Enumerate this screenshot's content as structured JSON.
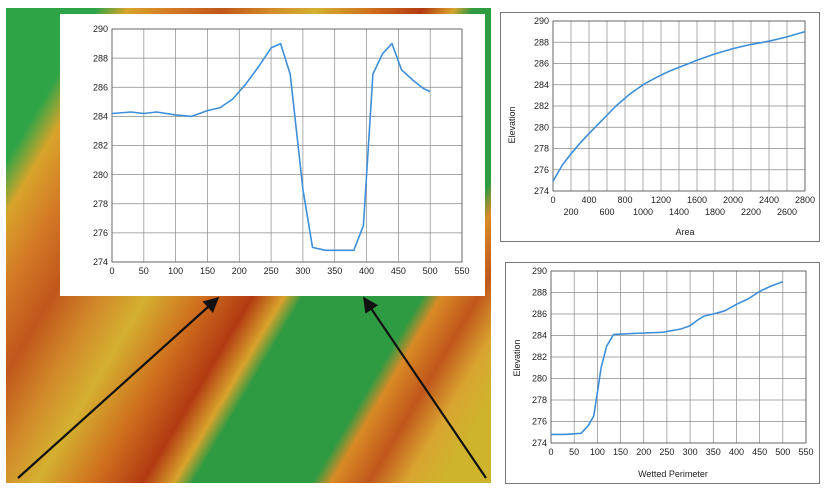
{
  "colors": {
    "line": "#3d8fd9",
    "grid": "#8a8a8a",
    "channel_green": "#2e9a42",
    "bank_green": "#2fa447",
    "red": "#b83a12",
    "orange": "#d9741a",
    "yellow": "#cfae20",
    "arrow": "#111111"
  },
  "chart_data": [
    {
      "id": "profile",
      "type": "line",
      "title": "",
      "xlabel": "",
      "ylabel": "",
      "xlim": [
        0,
        550
      ],
      "ylim": [
        274,
        290
      ],
      "xticks": [
        0,
        50,
        100,
        150,
        200,
        250,
        300,
        350,
        400,
        450,
        500,
        550
      ],
      "yticks": [
        274,
        276,
        278,
        280,
        282,
        284,
        286,
        288,
        290
      ],
      "grid": true,
      "series": [
        {
          "x": [
            0,
            30,
            50,
            70,
            100,
            125,
            150,
            170,
            190,
            210,
            230,
            250,
            265,
            280,
            300,
            315,
            335,
            350,
            360,
            380,
            395,
            410,
            425,
            440,
            455,
            475,
            490,
            500
          ],
          "y": [
            284.2,
            284.3,
            284.2,
            284.3,
            284.1,
            284.0,
            284.4,
            284.6,
            285.2,
            286.2,
            287.4,
            288.7,
            289.0,
            286.9,
            279.0,
            275.0,
            274.8,
            274.8,
            274.8,
            274.8,
            276.5,
            286.9,
            288.3,
            289.0,
            287.2,
            286.4,
            285.9,
            285.7
          ]
        }
      ]
    },
    {
      "id": "area",
      "type": "line",
      "title": "",
      "xlabel": "Area",
      "ylabel": "Elevation",
      "xlim": [
        0,
        2800
      ],
      "ylim": [
        274,
        290
      ],
      "xticks_top": [
        0,
        400,
        800,
        1200,
        1600,
        2000,
        2400,
        2800
      ],
      "xticks_bottom": [
        200,
        600,
        1000,
        1400,
        1800,
        2200,
        2600
      ],
      "yticks": [
        274,
        276,
        278,
        280,
        282,
        284,
        286,
        288,
        290
      ],
      "grid": true,
      "series": [
        {
          "x": [
            0,
            100,
            200,
            300,
            400,
            550,
            700,
            850,
            1000,
            1150,
            1300,
            1450,
            1600,
            1800,
            2000,
            2200,
            2400,
            2600,
            2800
          ],
          "y": [
            274.9,
            276.4,
            277.5,
            278.5,
            279.4,
            280.7,
            282.0,
            283.1,
            284.0,
            284.7,
            285.3,
            285.8,
            286.3,
            286.9,
            287.4,
            287.8,
            288.1,
            288.5,
            289.0
          ]
        }
      ]
    },
    {
      "id": "wetted",
      "type": "line",
      "title": "",
      "xlabel": "Wetted Perimeter",
      "ylabel": "Elevation",
      "xlim": [
        0,
        550
      ],
      "ylim": [
        274,
        290
      ],
      "xticks": [
        0,
        50,
        100,
        150,
        200,
        250,
        300,
        350,
        400,
        450,
        500,
        550
      ],
      "yticks": [
        274,
        276,
        278,
        280,
        282,
        284,
        286,
        288,
        290
      ],
      "grid": true,
      "series": [
        {
          "x": [
            0,
            30,
            65,
            80,
            92,
            100,
            108,
            120,
            135,
            180,
            240,
            280,
            300,
            315,
            330,
            350,
            375,
            400,
            425,
            450,
            475,
            500
          ],
          "y": [
            274.8,
            274.8,
            274.9,
            275.6,
            276.5,
            278.7,
            281.0,
            283.0,
            284.1,
            284.2,
            284.3,
            284.6,
            284.9,
            285.4,
            285.8,
            286.0,
            286.3,
            286.9,
            287.4,
            288.1,
            288.6,
            289.0
          ]
        }
      ]
    }
  ]
}
